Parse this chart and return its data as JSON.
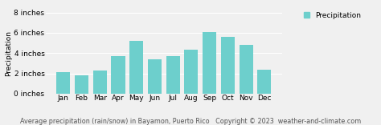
{
  "months": [
    "Jan",
    "Feb",
    "Mar",
    "Apr",
    "May",
    "Jun",
    "Jul",
    "Aug",
    "Sep",
    "Oct",
    "Nov",
    "Dec"
  ],
  "values": [
    2.1,
    1.85,
    2.3,
    3.7,
    5.2,
    3.4,
    3.7,
    4.3,
    6.1,
    5.6,
    4.8,
    2.4
  ],
  "bar_color": "#6dcfcc",
  "bar_edge_color": "#6dcfcc",
  "background_color": "#f0f0f0",
  "grid_color": "#ffffff",
  "ylabel": "Precipitation",
  "ylim": [
    0,
    8
  ],
  "yticks": [
    0,
    2,
    4,
    6,
    8
  ],
  "ytick_labels": [
    "0 inches",
    "2 inches",
    "4 inches",
    "6 inches",
    "8 inches"
  ],
  "title": "Average precipitation (rain/snow) in Bayamon, Puerto Rico   Copyright © 2023  weather-and-climate.com",
  "legend_label": "Precipitation",
  "legend_color": "#6dcfcc",
  "title_fontsize": 5.8,
  "axis_fontsize": 6.5,
  "ylabel_fontsize": 6.5
}
